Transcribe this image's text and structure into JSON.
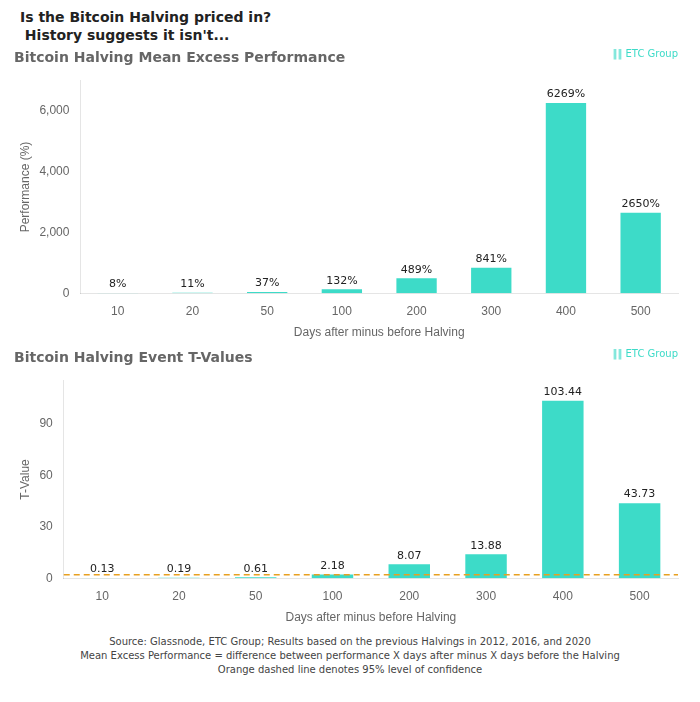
{
  "title": "Is the Bitcoin Halving priced in?",
  "subtitle": " History suggests it isn't...",
  "annotations": [
    "Source: Glassnode, ETC Group; Results based on the previous Halvings in 2012, 2016, and 2020",
    "Mean Excess Performance = difference between performance X days after minus X days before the Halving",
    "Orange dashed line denotes 95% level of confidence"
  ],
  "chart_data": [
    {
      "type": "bar",
      "title": "Bitcoin Halving Mean Excess Performance",
      "x_label": "Days after minus before Halving",
      "y_label": "Performance (%)",
      "categories": [
        10,
        20,
        50,
        100,
        200,
        300,
        400,
        500
      ],
      "values": [
        8,
        11,
        37,
        132,
        489,
        841,
        6269,
        2650
      ],
      "value_labels": [
        "8%",
        "11%",
        "37%",
        "132%",
        "489%",
        "841%",
        "6269%",
        "2650%"
      ],
      "data_labels": true,
      "color": "#3DDBC8",
      "ylim": [
        0,
        7000
      ],
      "yticks": [
        0,
        {
          "value": 2000,
          "label": "2,000"
        },
        {
          "value": 4000,
          "label": "4,000"
        },
        {
          "value": 6000,
          "label": "6,000"
        }
      ],
      "grid": false,
      "annotations": [
        {
          "text": "‖‖ ETC Group",
          "color": "#3DDBC8"
        }
      ]
    },
    {
      "type": "bar",
      "title": "Bitcoin Halving Event T-Values",
      "x_label": "Days after minus before Halving",
      "y_label": "T-Value",
      "categories": [
        10,
        20,
        50,
        100,
        200,
        300,
        400,
        500
      ],
      "values": [
        0.13,
        0.19,
        0.61,
        2.18,
        8.07,
        13.88,
        103.44,
        43.73
      ],
      "data_labels": true,
      "color": "#3DDBC8",
      "ylim": [
        0,
        115
      ],
      "yticks": [
        0,
        30,
        60,
        90
      ],
      "grid": false,
      "reference_lines": [
        {
          "value": 1.96,
          "color": "#E8A020",
          "line_style": "dashed"
        }
      ],
      "annotations": [
        {
          "text": "‖‖ ETC Group",
          "color": "#3DDBC8"
        }
      ]
    }
  ]
}
